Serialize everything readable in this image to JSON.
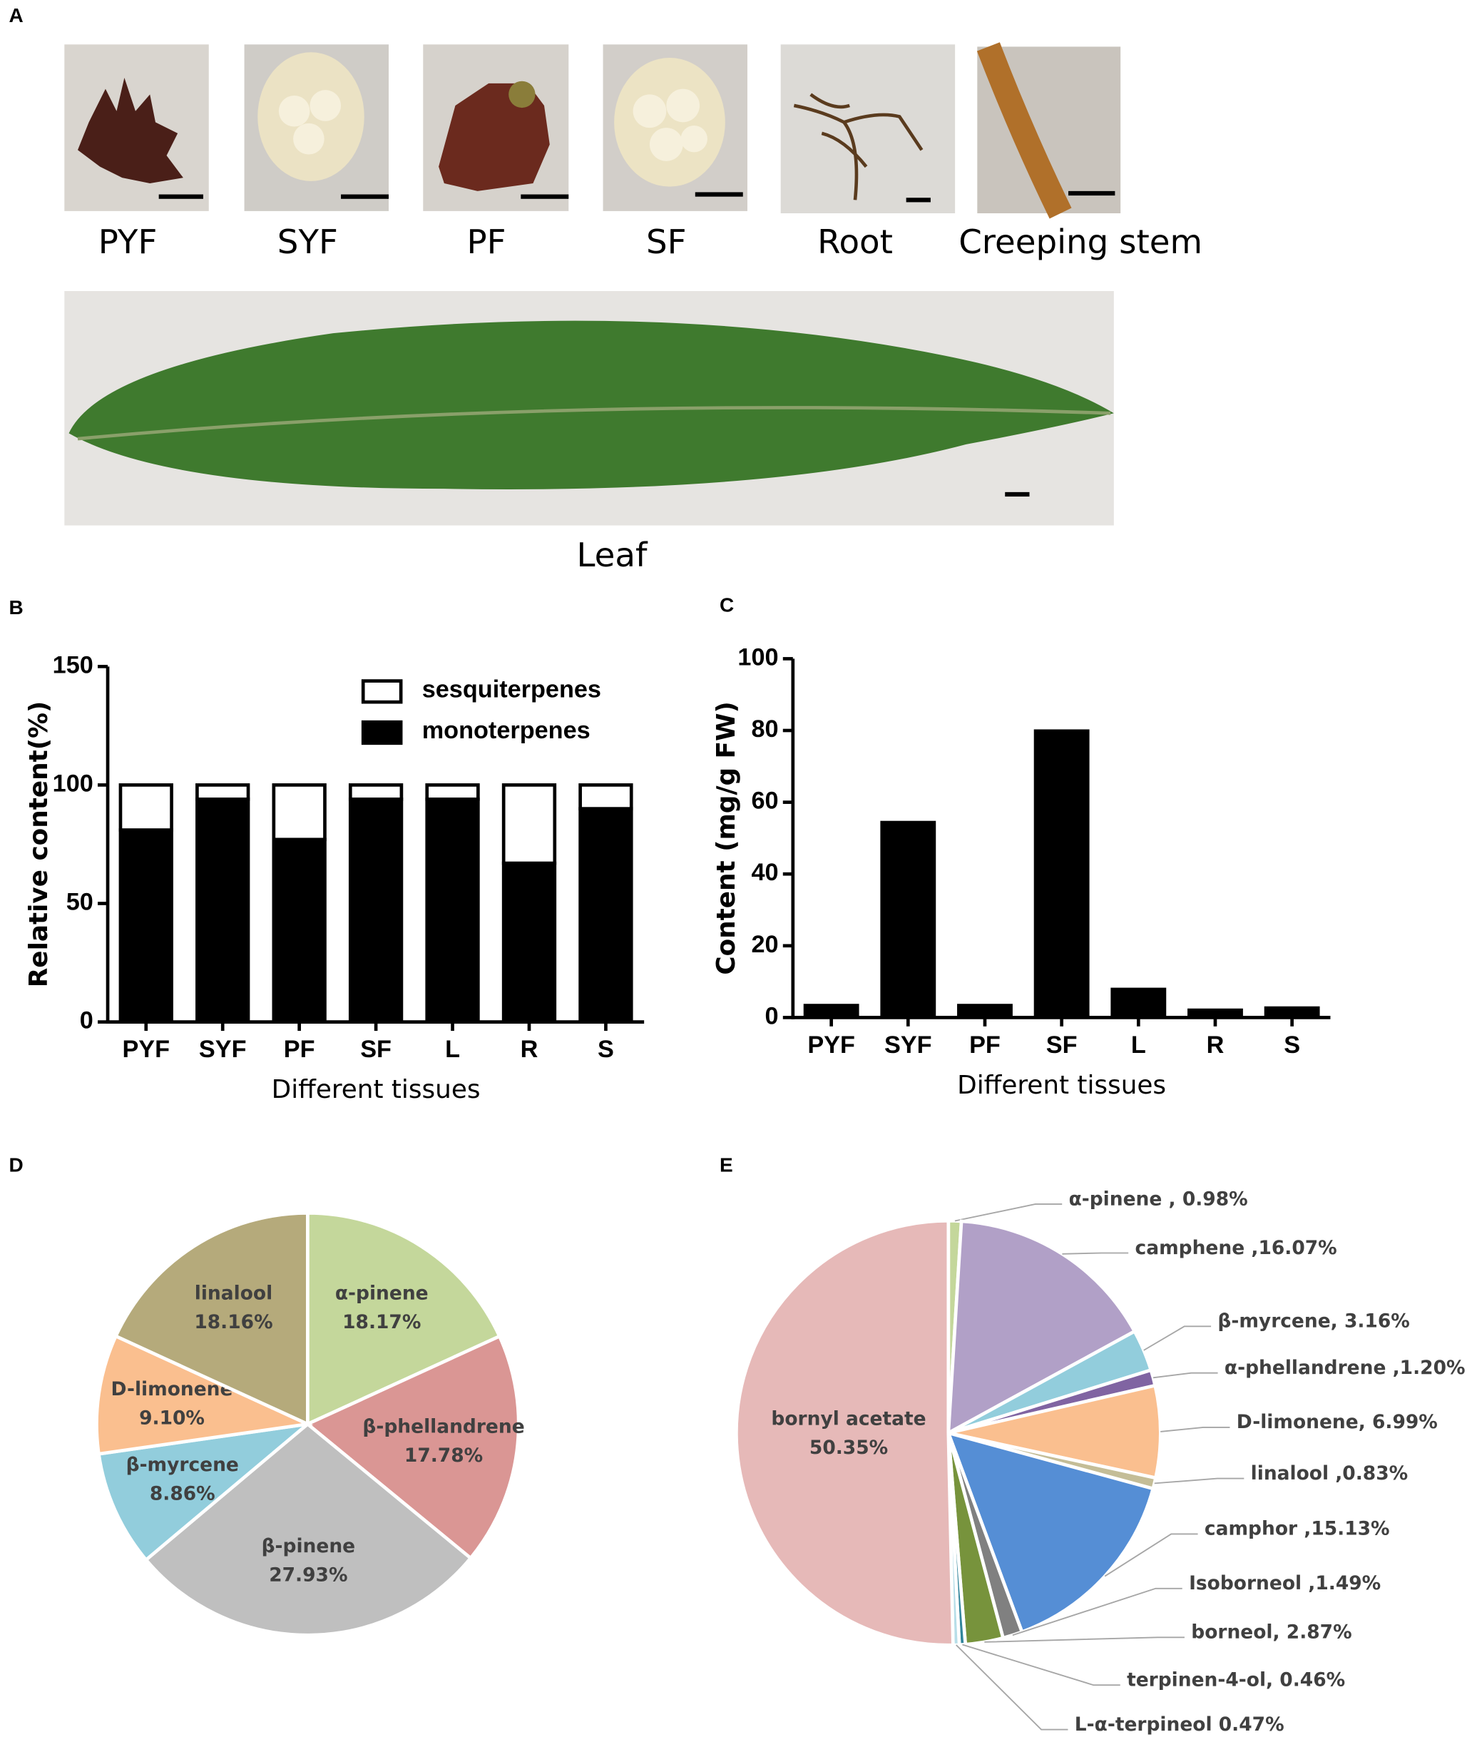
{
  "panels": [
    "A",
    "B",
    "C",
    "D",
    "E"
  ],
  "photos": {
    "labels": [
      "PYF",
      "SYF",
      "PF",
      "SF",
      "Root",
      "Creeping stem"
    ],
    "leaf": "Leaf"
  },
  "chart_data": [
    {
      "type": "bar",
      "stacked": true,
      "categories": [
        "PYF",
        "SYF",
        "PF",
        "SF",
        "L",
        "R",
        "S"
      ],
      "series": [
        {
          "name": "monoterpenes",
          "color": "#000000",
          "values": [
            81,
            94,
            77,
            94,
            94,
            67,
            90
          ]
        },
        {
          "name": "sesquiterpenes",
          "color": "#ffffff",
          "values": [
            19,
            6,
            23,
            6,
            6,
            33,
            10
          ]
        }
      ],
      "ylim": [
        0,
        150
      ],
      "yticks": [
        0,
        50,
        100,
        150
      ],
      "y_label": "Relative content(%)",
      "x_label": "Different tissues",
      "legend": "upper right"
    },
    {
      "type": "bar",
      "categories": [
        "PYF",
        "SYF",
        "PF",
        "SF",
        "L",
        "R",
        "S"
      ],
      "values": [
        3.5,
        54.5,
        3.5,
        80,
        8,
        2.2,
        2.8
      ],
      "color": "#000000",
      "ylim": [
        0,
        100
      ],
      "yticks": [
        0,
        20,
        40,
        60,
        80,
        100
      ],
      "y_label": "Content (mg/g FW)",
      "x_label": "Different tissues"
    },
    {
      "type": "pie",
      "categories": [
        "α-pinene",
        "β-phellandrene",
        "β-pinene",
        "β-myrcene",
        "D-limonene",
        "linalool"
      ],
      "values": [
        18.17,
        17.78,
        27.93,
        8.86,
        9.1,
        18.16
      ],
      "value_labels": [
        "18.17%",
        "17.78%",
        "27.93%",
        "8.86%",
        "9.10%",
        "18.16%"
      ],
      "colors": [
        "#c4d79b",
        "#da9694",
        "#bfbfbf",
        "#92cddc",
        "#fabf8f",
        "#b5aa7b"
      ]
    },
    {
      "type": "pie",
      "labels": [
        [
          "α-pinene , 0.98%"
        ],
        [
          "camphene ,16.07%"
        ],
        [
          "β-myrcene, 3.16%"
        ],
        [
          "α-phellandrene ,1.20%"
        ],
        [
          "D-limonene, 6.99%"
        ],
        [
          "linalool ,0.83%"
        ],
        [
          "camphor ,15.13%"
        ],
        [
          "Isoborneol ,1.49%"
        ],
        [
          "borneol, 2.87%"
        ],
        [
          "terpinen-4-ol, 0.46%"
        ],
        [
          "L-α-terpineol 0.47%"
        ],
        [
          "bornyl acetate",
          "50.35%"
        ]
      ],
      "values": [
        0.98,
        16.07,
        3.16,
        1.2,
        6.99,
        0.83,
        15.13,
        1.49,
        2.87,
        0.46,
        0.47,
        50.35
      ],
      "colors": [
        "#c4d79b",
        "#b1a0c7",
        "#92cddc",
        "#8064a2",
        "#fabf8f",
        "#c4bd97",
        "#558ed5",
        "#808080",
        "#77933c",
        "#31859c",
        "#b7dee8",
        "#e6b9b8"
      ]
    }
  ]
}
